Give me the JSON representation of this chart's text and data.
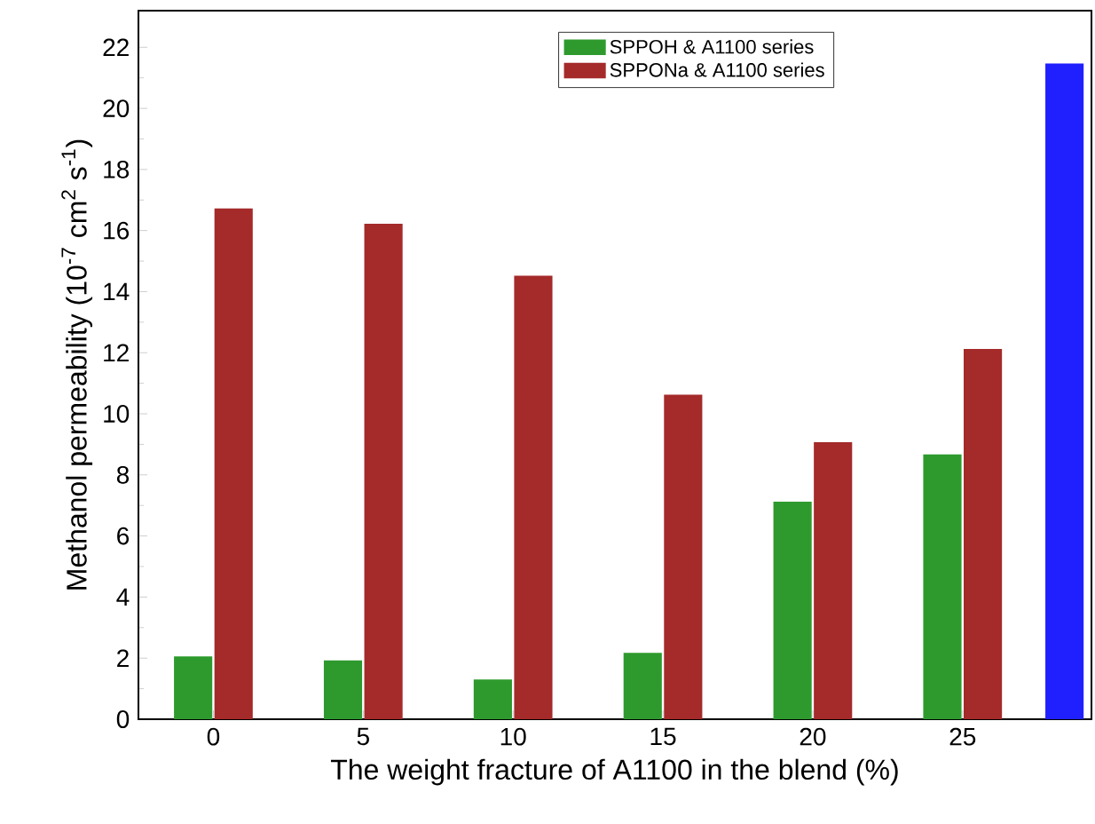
{
  "chart_data": {
    "type": "bar",
    "xlabel": "The weight fracture of A1100 in the blend (%)",
    "ylabel": "Methanol permeability (10$^{-7}$ cm$^{2}$ s$^{-1}$)",
    "x": [
      0,
      5,
      10,
      15,
      20,
      25
    ],
    "series": [
      {
        "name": "SPPOH & A1100 series",
        "color": "#2e9a2e",
        "values": [
          2.03,
          1.9,
          1.28,
          2.15,
          7.1,
          8.65
        ]
      },
      {
        "name": "SPPONa & A1100 series",
        "color": "#a52a2a",
        "values": [
          16.7,
          16.2,
          14.5,
          10.6,
          9.05,
          12.1
        ]
      },
      {
        "color": "#2020ff",
        "x": [
          28.4
        ],
        "values": [
          21.45
        ]
      }
    ],
    "xlim": [
      -2.5,
      29.3
    ],
    "ylim": [
      0,
      23.2
    ],
    "xticks": [
      0,
      5,
      10,
      15,
      20,
      25
    ],
    "yticks": [
      0,
      2,
      4,
      6,
      8,
      10,
      12,
      14,
      16,
      18,
      20,
      22
    ],
    "legend": "top right",
    "grid": false
  }
}
